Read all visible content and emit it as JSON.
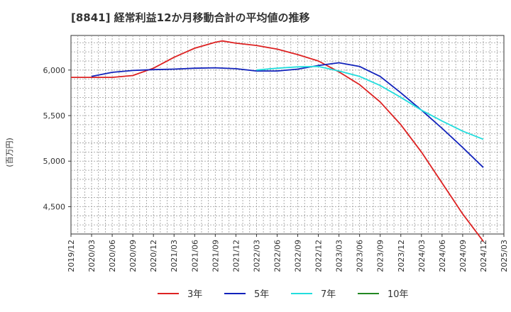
{
  "chart_data": {
    "type": "line",
    "title": "[8841]  経常利益12か月移動合計の平均値の推移",
    "ylabel": "(百万円)",
    "xlabel": "",
    "ylim": [
      4200,
      6380
    ],
    "yticks": [
      4500,
      5000,
      5500,
      6000
    ],
    "ytick_labels": [
      "4,500",
      "5,000",
      "5,500",
      "6,000"
    ],
    "x_ticks": [
      "2019/12",
      "2020/03",
      "2020/06",
      "2020/09",
      "2020/12",
      "2021/03",
      "2021/06",
      "2021/09",
      "2021/12",
      "2022/03",
      "2022/06",
      "2022/09",
      "2022/12",
      "2023/03",
      "2023/06",
      "2023/09",
      "2023/12",
      "2024/03",
      "2024/06",
      "2024/09",
      "2024/12",
      "2025/03"
    ],
    "grid": true,
    "legend_position": "bottom",
    "series": [
      {
        "name": "3年",
        "color": "#dd2222",
        "values": [
          [
            "2019/12",
            5920
          ],
          [
            "2020/03",
            5920
          ],
          [
            "2020/06",
            5920
          ],
          [
            "2020/09",
            5940
          ],
          [
            "2020/12",
            6020
          ],
          [
            "2021/03",
            6140
          ],
          [
            "2021/06",
            6240
          ],
          [
            "2021/09",
            6305
          ],
          [
            "2021/10",
            6320
          ],
          [
            "2021/12",
            6295
          ],
          [
            "2022/03",
            6270
          ],
          [
            "2022/06",
            6230
          ],
          [
            "2022/09",
            6170
          ],
          [
            "2022/12",
            6100
          ],
          [
            "2023/03",
            5980
          ],
          [
            "2023/06",
            5840
          ],
          [
            "2023/09",
            5650
          ],
          [
            "2023/12",
            5400
          ],
          [
            "2024/03",
            5100
          ],
          [
            "2024/06",
            4760
          ],
          [
            "2024/09",
            4420
          ],
          [
            "2024/12",
            4120
          ]
        ]
      },
      {
        "name": "5年",
        "color": "#1122bb",
        "values": [
          [
            "2020/03",
            5930
          ],
          [
            "2020/06",
            5975
          ],
          [
            "2020/09",
            5995
          ],
          [
            "2020/12",
            6005
          ],
          [
            "2021/03",
            6010
          ],
          [
            "2021/06",
            6020
          ],
          [
            "2021/09",
            6025
          ],
          [
            "2021/12",
            6015
          ],
          [
            "2022/03",
            5990
          ],
          [
            "2022/06",
            5990
          ],
          [
            "2022/09",
            6010
          ],
          [
            "2022/12",
            6050
          ],
          [
            "2023/03",
            6080
          ],
          [
            "2023/06",
            6040
          ],
          [
            "2023/09",
            5930
          ],
          [
            "2023/12",
            5750
          ],
          [
            "2024/03",
            5560
          ],
          [
            "2024/06",
            5360
          ],
          [
            "2024/09",
            5150
          ],
          [
            "2024/12",
            4930
          ]
        ]
      },
      {
        "name": "7年",
        "color": "#22dddd",
        "values": [
          [
            "2022/03",
            6000
          ],
          [
            "2022/06",
            6020
          ],
          [
            "2022/09",
            6035
          ],
          [
            "2022/12",
            6040
          ],
          [
            "2023/03",
            5990
          ],
          [
            "2023/06",
            5930
          ],
          [
            "2023/09",
            5830
          ],
          [
            "2023/12",
            5700
          ],
          [
            "2024/03",
            5560
          ],
          [
            "2024/06",
            5440
          ],
          [
            "2024/09",
            5330
          ],
          [
            "2024/12",
            5240
          ]
        ]
      },
      {
        "name": "10年",
        "color": "#228822",
        "values": []
      }
    ]
  }
}
